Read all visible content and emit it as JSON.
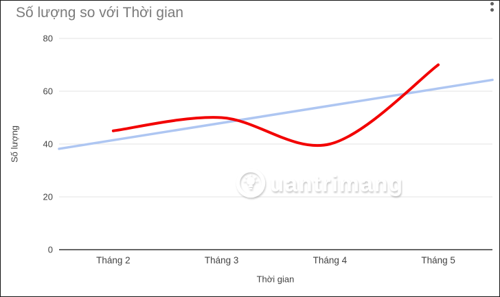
{
  "chart": {
    "title": "Số lượng so với Thời gian",
    "xlabel": "Thời gian",
    "ylabel": "Số lượng",
    "menu_icon": "vertical-dots-menu"
  },
  "watermark": {
    "text": "uantrimang",
    "logo": "lightbulb-circle-logo",
    "brand": "Quantrimang"
  },
  "colors": {
    "series_red": "#f20000",
    "trendline_blue": "#aec6f2",
    "gridline": "#e3e3e3",
    "axis_line": "#333333",
    "tick_label": "#424242",
    "title_gray": "#7b7b7b",
    "frame_border": "#141414"
  },
  "chart_data": {
    "type": "line",
    "title": "Số lượng so với Thời gian",
    "categories": [
      "Tháng 2",
      "Tháng 3",
      "Tháng 4",
      "Tháng 5"
    ],
    "series": [
      {
        "name": "Số lượng",
        "style": "smooth-curve",
        "color": "#f20000",
        "values": [
          45,
          50,
          40,
          70
        ]
      },
      {
        "name": "Linear trendline",
        "style": "straight-line",
        "color": "#aec6f2",
        "values_at_categories": [
          41.5,
          48,
          54.5,
          61
        ],
        "edge_values": [
          38.2,
          64.3
        ]
      }
    ],
    "xlabel": "Thời gian",
    "ylabel": "Số lượng",
    "ylim": [
      0,
      80
    ],
    "yticks": [
      0,
      20,
      40,
      60,
      80
    ],
    "grid": "horizontal",
    "legend": "none"
  }
}
